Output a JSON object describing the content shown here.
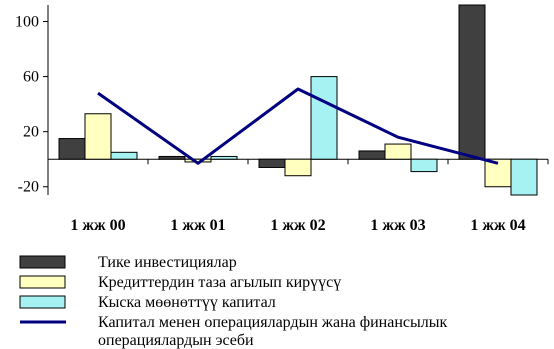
{
  "chart_data": {
    "type": "bar",
    "categories": [
      "1 жж 00",
      "1 жж 01",
      "1 жж 02",
      "1 жж 03",
      "1 жж 04"
    ],
    "ylim": [
      -26,
      112
    ],
    "yticks": [
      -20,
      20,
      60,
      100
    ],
    "ytick_labels": [
      "-20",
      "20",
      "60",
      "100"
    ],
    "series": [
      {
        "name": "Тике инвестициялар",
        "kind": "bar",
        "color": "#404040",
        "values": [
          15,
          2,
          -6,
          6,
          112
        ]
      },
      {
        "name": "Кредиттердин таза агылып кирүүсү",
        "kind": "bar",
        "color": "#ffffc0",
        "values": [
          33,
          -2,
          -12,
          11,
          -20
        ]
      },
      {
        "name": "Кыска мөөнөттүү капитал",
        "kind": "bar",
        "color": "#a6f2f2",
        "values": [
          5,
          2,
          60,
          -9,
          -26
        ]
      },
      {
        "name": "Капитал менен операциялардын жана финансылык операциялардын эсеби",
        "kind": "line",
        "color": "#000080",
        "values": [
          48,
          -3,
          51,
          16,
          -3
        ]
      }
    ],
    "legend": {
      "position": "bottom",
      "entries": [
        {
          "lines": [
            "Тике инвестициялар"
          ]
        },
        {
          "lines": [
            "Кредиттердин таза агылып кирүүсү"
          ]
        },
        {
          "lines": [
            "Кыска мөөнөттүү капитал"
          ]
        },
        {
          "lines": [
            "Капитал менен операциялардын жана финансылык",
            "операциялардын эсеби"
          ]
        }
      ]
    },
    "grid": false
  }
}
